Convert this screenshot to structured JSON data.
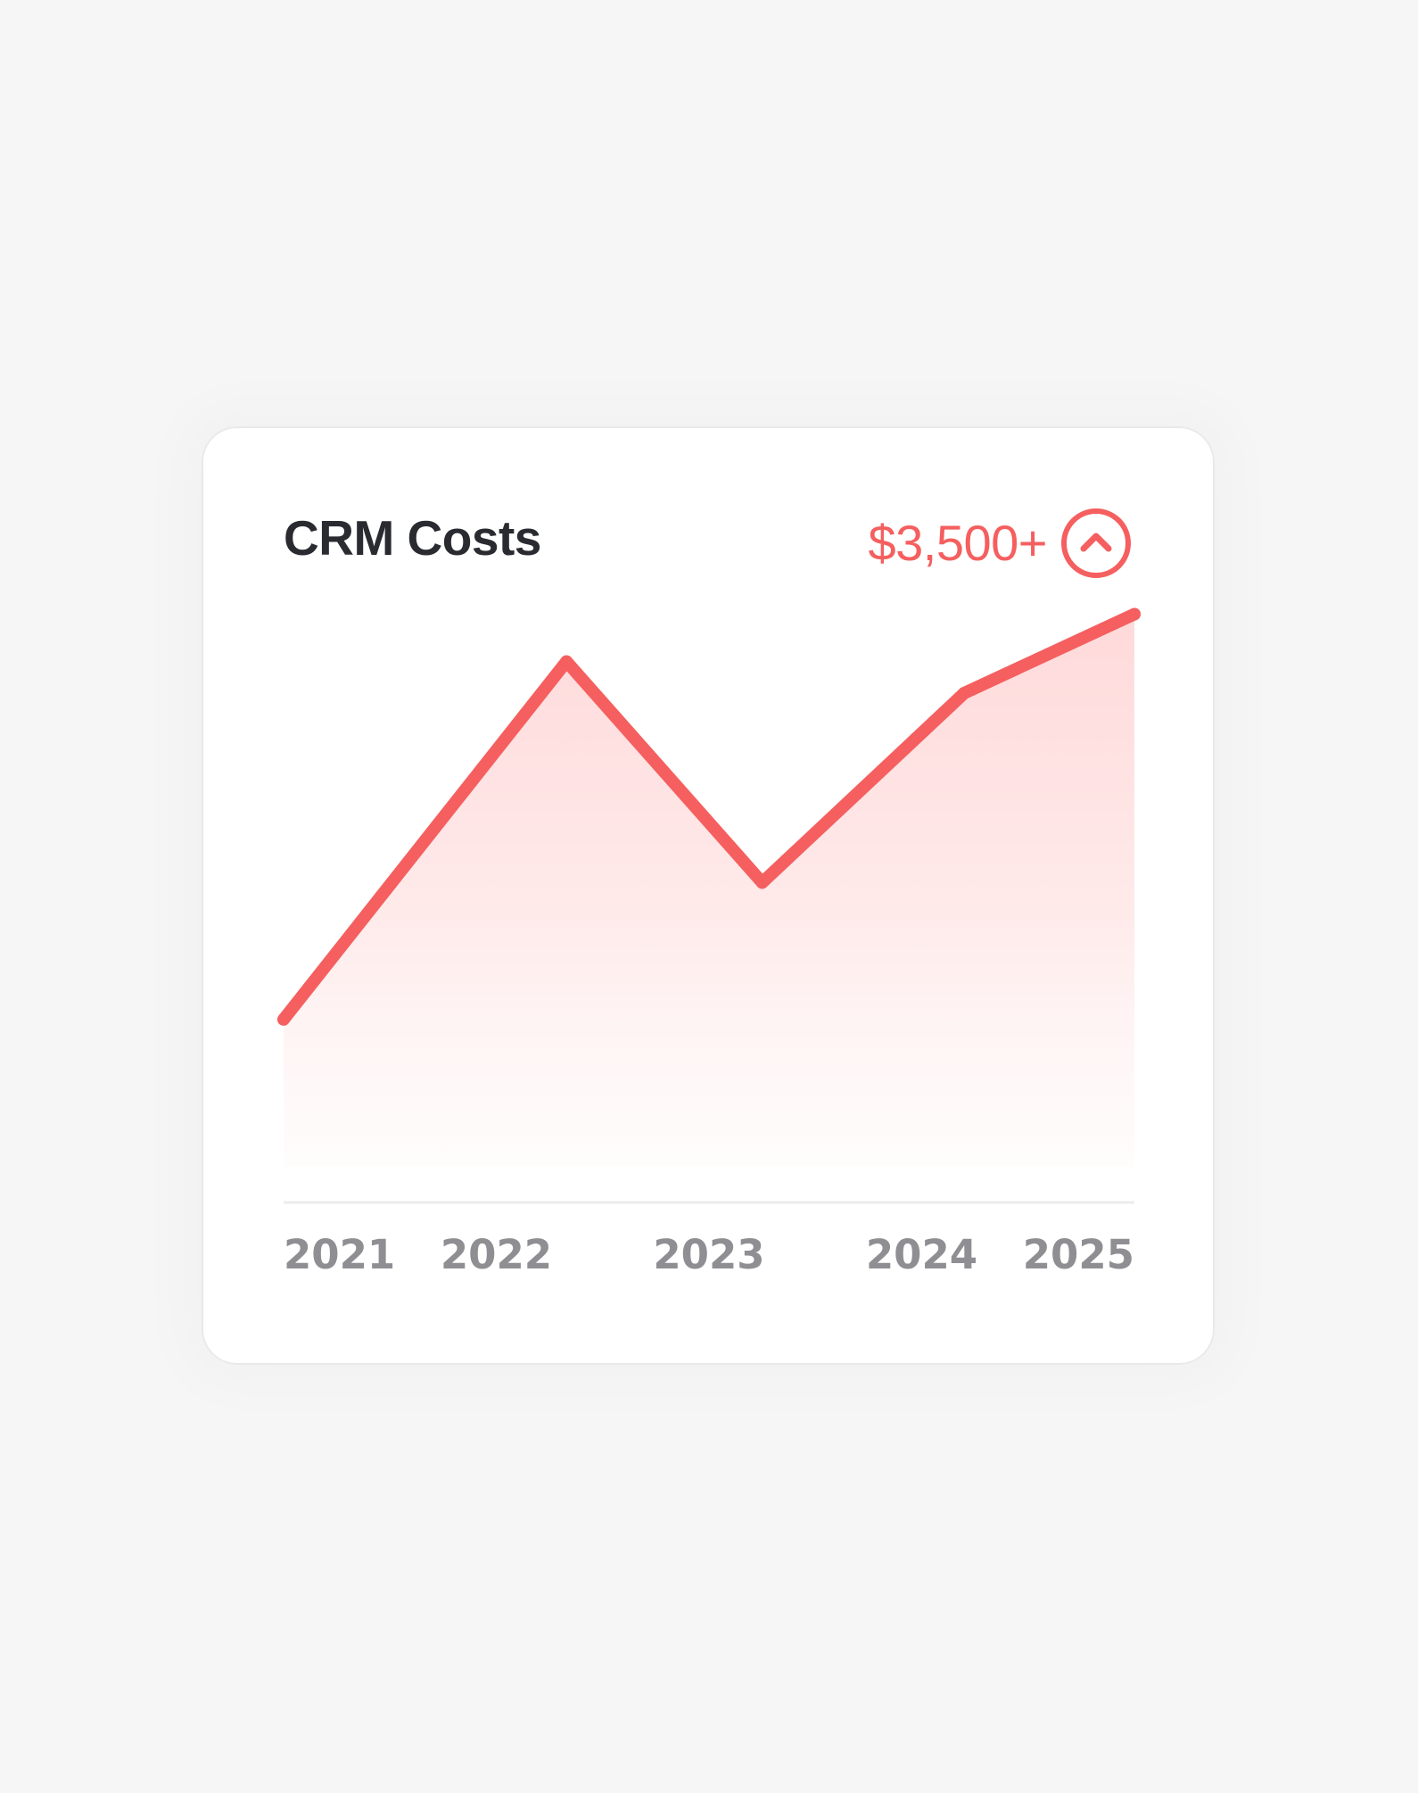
{
  "card": {
    "title": "CRM Costs",
    "headline_value": "$3,500+",
    "trend_icon": "chevron-up-circle-icon"
  },
  "colors": {
    "background": "#f6f6f6",
    "card": "#ffffff",
    "accent": "#f55f5f",
    "title": "#2a2b30",
    "axis_label": "#8f8f93",
    "baseline": "#ececec"
  },
  "chart_data": {
    "type": "area",
    "title": "CRM Costs",
    "categories": [
      "2021",
      "2022",
      "2023",
      "2024",
      "2025"
    ],
    "x": [
      2021,
      2022.33,
      2023.25,
      2024.2,
      2025
    ],
    "values": [
      28,
      96,
      54,
      90,
      105
    ],
    "ylim": [
      0,
      120
    ],
    "xlim": [
      2021,
      2025
    ],
    "grid": false,
    "legend": "none",
    "y_axis_visible": false
  }
}
